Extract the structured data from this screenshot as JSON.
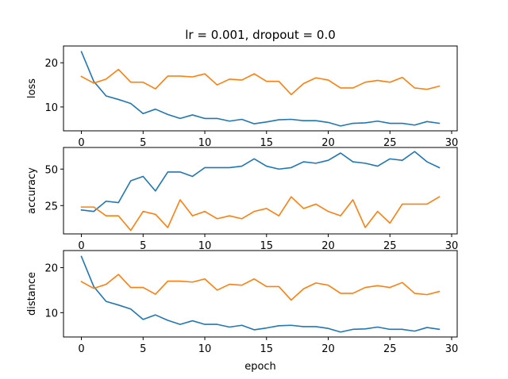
{
  "figure": {
    "title": "lr = 0.001, dropout = 0.0",
    "xlabel": "epoch"
  },
  "colors": {
    "series_1": "#1f77b4",
    "series_2": "#ff7f0e",
    "axes": "#000000",
    "background": "#ffffff"
  },
  "chart_data": [
    {
      "type": "line",
      "title": "lr = 0.001, dropout = 0.0",
      "xlabel": "",
      "ylabel": "loss",
      "xlim": [
        -1.45,
        30.45
      ],
      "ylim": [
        4.6,
        23.8
      ],
      "xticks": [
        0,
        5,
        10,
        15,
        20,
        25,
        30
      ],
      "yticks": [
        10,
        20
      ],
      "grid": false,
      "legend": "none",
      "x": [
        0,
        1,
        2,
        3,
        4,
        5,
        6,
        7,
        8,
        9,
        10,
        11,
        12,
        13,
        14,
        15,
        16,
        17,
        18,
        19,
        20,
        21,
        22,
        23,
        24,
        25,
        26,
        27,
        28,
        29
      ],
      "series": [
        {
          "color": "#1f77b4",
          "values": [
            22.5,
            15.8,
            12.5,
            11.7,
            10.8,
            8.5,
            9.5,
            8.3,
            7.4,
            8.2,
            7.4,
            7.4,
            6.8,
            7.2,
            6.2,
            6.6,
            7.1,
            7.2,
            6.9,
            6.9,
            6.5,
            5.7,
            6.3,
            6.4,
            6.8,
            6.3,
            6.3,
            5.9,
            6.7,
            6.3
          ]
        },
        {
          "color": "#ff7f0e",
          "values": [
            16.9,
            15.4,
            16.3,
            18.5,
            15.6,
            15.6,
            14.1,
            17.0,
            17.0,
            16.8,
            17.5,
            15.0,
            16.3,
            16.1,
            17.5,
            15.8,
            15.8,
            12.8,
            15.3,
            16.6,
            16.1,
            14.3,
            14.3,
            15.6,
            16.0,
            15.6,
            16.7,
            14.3,
            14.0,
            14.7
          ]
        }
      ]
    },
    {
      "type": "line",
      "xlabel": "",
      "ylabel": "accuracy",
      "xlim": [
        -1.45,
        30.45
      ],
      "ylim": [
        5.6,
        64.8
      ],
      "xticks": [
        0,
        5,
        10,
        15,
        20,
        25,
        30
      ],
      "yticks": [
        25,
        50
      ],
      "grid": false,
      "legend": "none",
      "x": [
        0,
        1,
        2,
        3,
        4,
        5,
        6,
        7,
        8,
        9,
        10,
        11,
        12,
        13,
        14,
        15,
        16,
        17,
        18,
        19,
        20,
        21,
        22,
        23,
        24,
        25,
        26,
        27,
        28,
        29
      ],
      "series": [
        {
          "color": "#1f77b4",
          "values": [
            22,
            21,
            28,
            27,
            42,
            45,
            35,
            48,
            48,
            45,
            51,
            51,
            51,
            52,
            57,
            52,
            50,
            51,
            55,
            54,
            56,
            61,
            55,
            54,
            52,
            57,
            56,
            62,
            55,
            51
          ]
        },
        {
          "color": "#ff7f0e",
          "values": [
            24,
            24,
            18,
            18,
            8,
            21,
            19,
            10,
            29,
            18,
            21,
            16,
            18,
            16,
            21,
            23,
            18,
            31,
            23,
            26,
            21,
            18,
            29,
            10,
            21,
            13,
            26,
            26,
            26,
            31
          ]
        }
      ]
    },
    {
      "type": "line",
      "xlabel": "epoch",
      "ylabel": "distance",
      "xlim": [
        -1.45,
        30.45
      ],
      "ylim": [
        4.6,
        23.8
      ],
      "xticks": [
        0,
        5,
        10,
        15,
        20,
        25,
        30
      ],
      "yticks": [
        10,
        20
      ],
      "grid": false,
      "legend": "none",
      "x": [
        0,
        1,
        2,
        3,
        4,
        5,
        6,
        7,
        8,
        9,
        10,
        11,
        12,
        13,
        14,
        15,
        16,
        17,
        18,
        19,
        20,
        21,
        22,
        23,
        24,
        25,
        26,
        27,
        28,
        29
      ],
      "series": [
        {
          "color": "#1f77b4",
          "values": [
            22.5,
            15.8,
            12.5,
            11.7,
            10.8,
            8.5,
            9.5,
            8.3,
            7.4,
            8.2,
            7.4,
            7.4,
            6.8,
            7.2,
            6.2,
            6.6,
            7.1,
            7.2,
            6.9,
            6.9,
            6.5,
            5.7,
            6.3,
            6.4,
            6.8,
            6.3,
            6.3,
            5.9,
            6.7,
            6.3
          ]
        },
        {
          "color": "#ff7f0e",
          "values": [
            16.9,
            15.4,
            16.3,
            18.5,
            15.6,
            15.6,
            14.1,
            17.0,
            17.0,
            16.8,
            17.5,
            15.0,
            16.3,
            16.1,
            17.5,
            15.8,
            15.8,
            12.8,
            15.3,
            16.6,
            16.1,
            14.3,
            14.3,
            15.6,
            16.0,
            15.6,
            16.7,
            14.3,
            14.0,
            14.7
          ]
        }
      ]
    }
  ]
}
